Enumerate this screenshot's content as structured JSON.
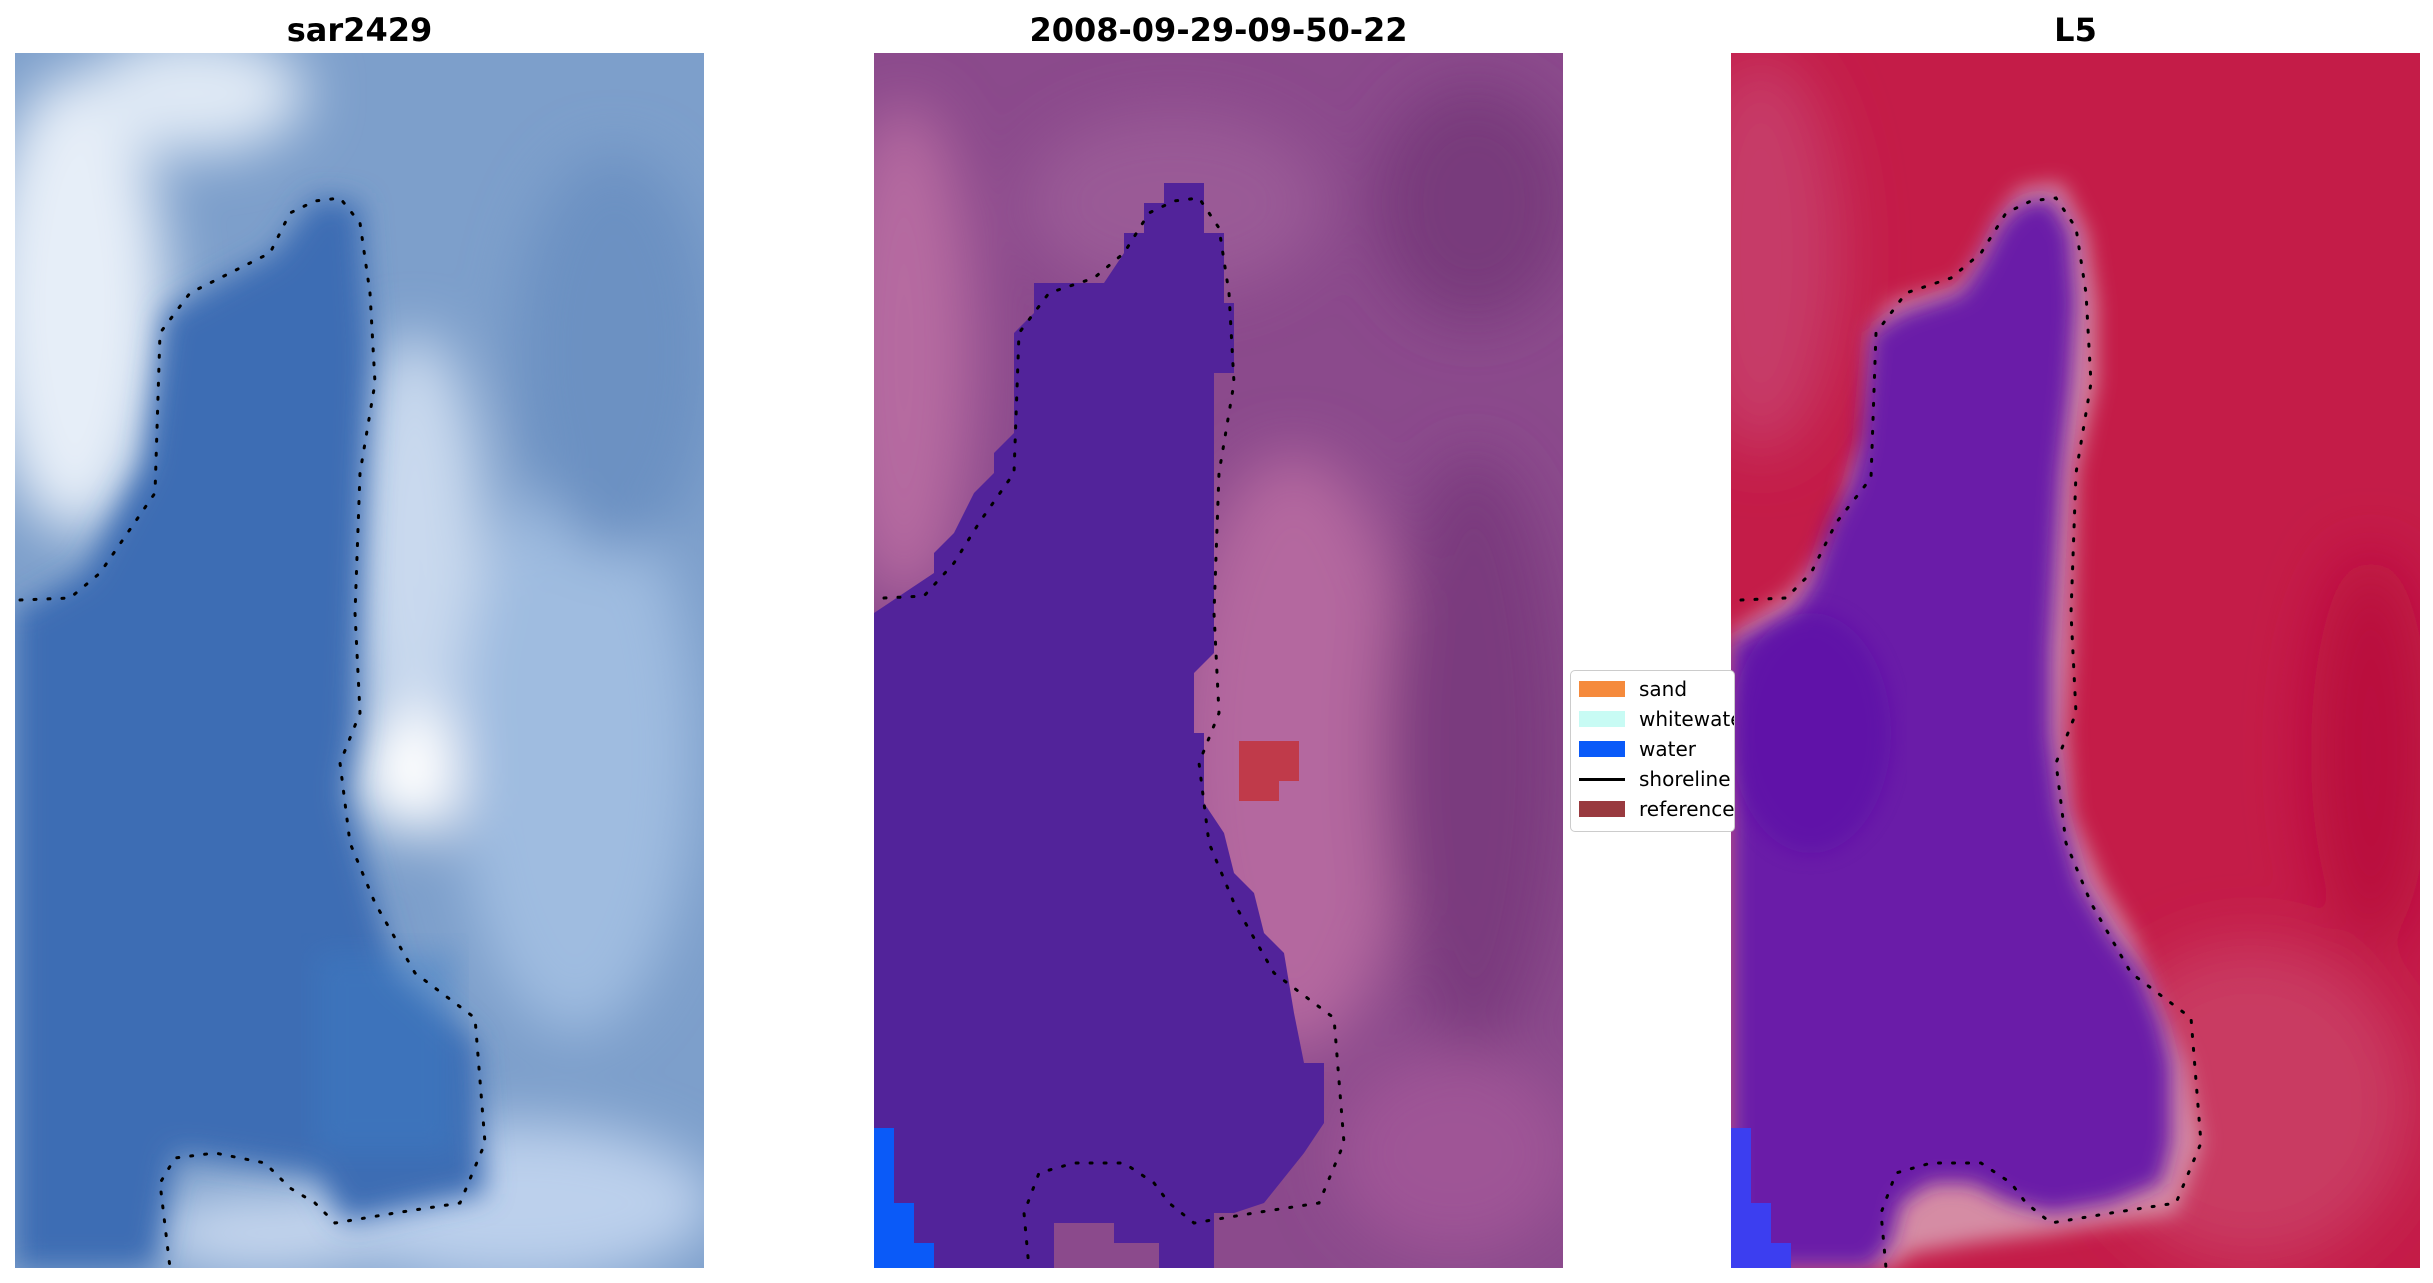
{
  "panels": [
    {
      "title": "sar2429",
      "kind": "rgb-image"
    },
    {
      "title": "2008-09-29-09-50-22",
      "kind": "classified-overlay"
    },
    {
      "title": "L5",
      "kind": "index-map"
    }
  ],
  "legend": {
    "items": [
      {
        "label": "sand",
        "color": "#f58a3c",
        "type": "patch"
      },
      {
        "label": "whitewater",
        "color": "#c8fbf4",
        "type": "patch"
      },
      {
        "label": "water",
        "color": "#0a5af8",
        "type": "patch"
      },
      {
        "label": "shoreline",
        "color": "#000000",
        "type": "line"
      },
      {
        "label": "reference",
        "color": "#993a3f",
        "type": "patch"
      }
    ]
  },
  "colors": {
    "rgb_water": "#3d6fb5",
    "rgb_land": "#8fb0d6",
    "class_water": "#52239a",
    "class_land": "#8f4f8f",
    "index_water": "#6a1aa8",
    "index_land": "#c0204a",
    "shoreline": "#000000"
  }
}
